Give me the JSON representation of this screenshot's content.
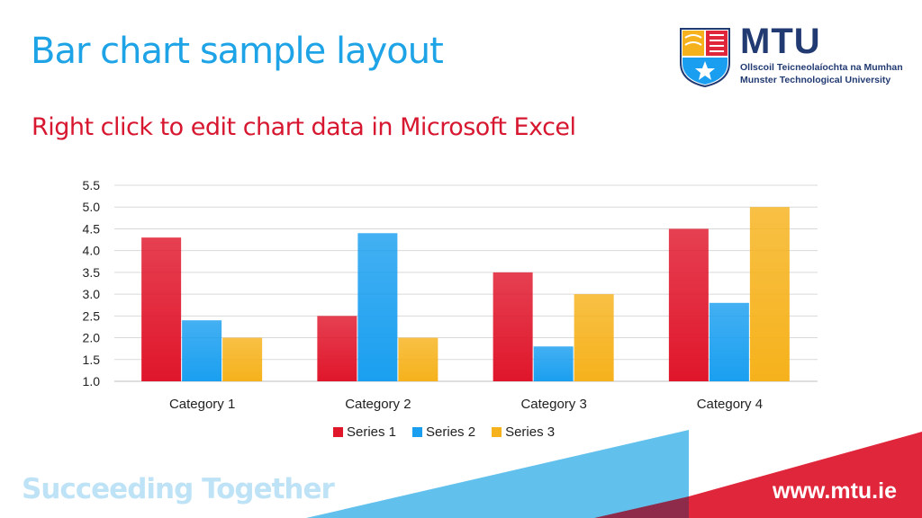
{
  "slide": {
    "title": "Bar chart sample layout",
    "subtitle": "Right click to edit chart data in Microsoft Excel",
    "tagline": "Succeeding Together",
    "website": "www.mtu.ie"
  },
  "logo": {
    "name": "MTU",
    "line1": "Ollscoil Teicneolaíochta na Mumhan",
    "line2": "Munster Technological University",
    "icon": "mtu-crest-icon"
  },
  "colors": {
    "title": "#1ea4e6",
    "subtitle": "#d7172f",
    "series1": "#e0162b",
    "series2": "#1a9ff0",
    "series3": "#f6b21c",
    "navy": "#213a72"
  },
  "chart_data": {
    "type": "bar",
    "categories": [
      "Category 1",
      "Category 2",
      "Category 3",
      "Category 4"
    ],
    "series": [
      {
        "name": "Series 1",
        "values": [
          4.3,
          2.5,
          3.5,
          4.5
        ]
      },
      {
        "name": "Series 2",
        "values": [
          2.4,
          4.4,
          1.8,
          2.8
        ]
      },
      {
        "name": "Series 3",
        "values": [
          2.0,
          2.0,
          3.0,
          5.0
        ]
      }
    ],
    "ylim": [
      1.0,
      5.5
    ],
    "yticks": [
      "1.0",
      "1.5",
      "2.0",
      "2.5",
      "3.0",
      "3.5",
      "4.0",
      "4.5",
      "5.0",
      "5.5"
    ],
    "grid": true,
    "legend_position": "bottom"
  }
}
